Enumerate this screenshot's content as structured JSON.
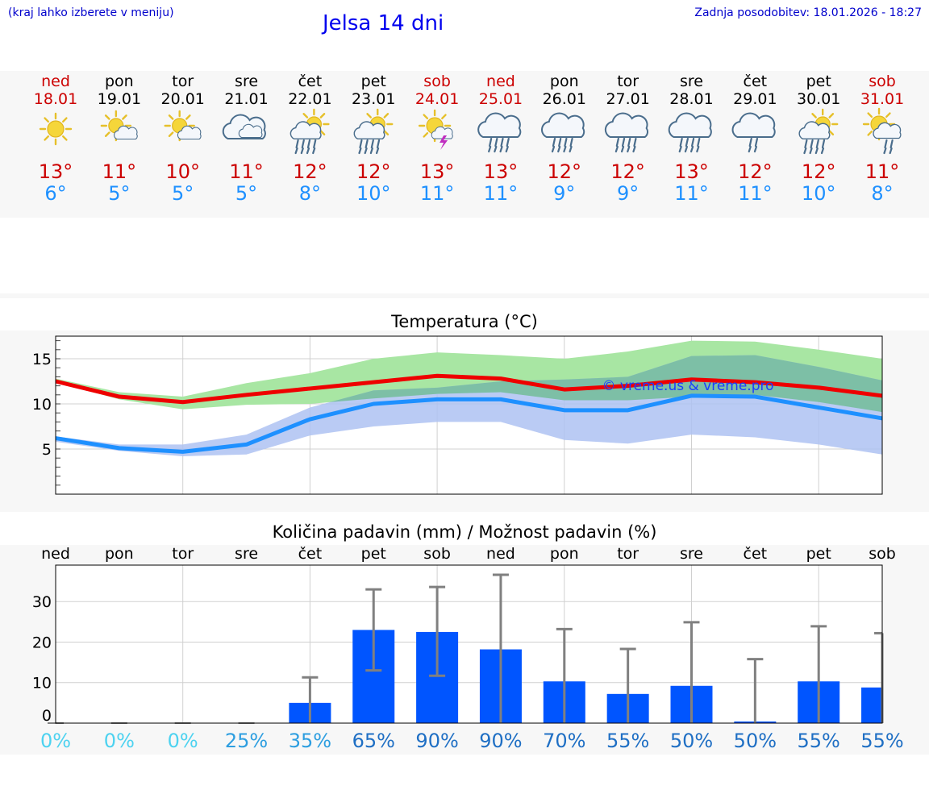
{
  "header": {
    "note": "(kraj lahko izberete v meniju)",
    "title": "Jelsa 14 dni",
    "updated": "Zadnja posodobitev: 18.01.2026 - 18:27"
  },
  "colors": {
    "weekend": "#cc0000",
    "weekday": "#000000",
    "tmax": "#ee0000",
    "tmin": "#1e90ff",
    "max_band": "#a8e6a3",
    "min_band": "#aec2f2",
    "overlap": "#7dbfa6",
    "bar": "#0055ff",
    "err": "#808080"
  },
  "days": [
    {
      "name": "ned",
      "date": "18.01",
      "weekend": true,
      "icon": "sunny-icon",
      "tmax": "13°",
      "tmin": "6°"
    },
    {
      "name": "pon",
      "date": "19.01",
      "weekend": false,
      "icon": "sun-cloud-icon",
      "tmax": "11°",
      "tmin": "5°"
    },
    {
      "name": "tor",
      "date": "20.01",
      "weekend": false,
      "icon": "sun-cloud-icon",
      "tmax": "10°",
      "tmin": "5°"
    },
    {
      "name": "sre",
      "date": "21.01",
      "weekend": false,
      "icon": "cloudy-icon",
      "tmax": "11°",
      "tmin": "5°"
    },
    {
      "name": "čet",
      "date": "22.01",
      "weekend": false,
      "icon": "sun-rain-icon",
      "tmax": "12°",
      "tmin": "8°"
    },
    {
      "name": "pet",
      "date": "23.01",
      "weekend": false,
      "icon": "sun-rain-icon",
      "tmax": "12°",
      "tmin": "10°"
    },
    {
      "name": "sob",
      "date": "24.01",
      "weekend": true,
      "icon": "sun-storm-icon",
      "tmax": "13°",
      "tmin": "11°"
    },
    {
      "name": "ned",
      "date": "25.01",
      "weekend": true,
      "icon": "rain-icon",
      "tmax": "13°",
      "tmin": "11°"
    },
    {
      "name": "pon",
      "date": "26.01",
      "weekend": false,
      "icon": "rain-icon",
      "tmax": "12°",
      "tmin": "9°"
    },
    {
      "name": "tor",
      "date": "27.01",
      "weekend": false,
      "icon": "rain-icon",
      "tmax": "12°",
      "tmin": "9°"
    },
    {
      "name": "sre",
      "date": "28.01",
      "weekend": false,
      "icon": "rain-icon",
      "tmax": "13°",
      "tmin": "11°"
    },
    {
      "name": "čet",
      "date": "29.01",
      "weekend": false,
      "icon": "light-rain-icon",
      "tmax": "12°",
      "tmin": "11°"
    },
    {
      "name": "pet",
      "date": "30.01",
      "weekend": false,
      "icon": "sun-rain-icon",
      "tmax": "12°",
      "tmin": "10°"
    },
    {
      "name": "sob",
      "date": "31.01",
      "weekend": true,
      "icon": "sun-shower-icon",
      "tmax": "11°",
      "tmin": "8°"
    }
  ],
  "chart_data": [
    {
      "type": "line",
      "title": "Temperatura (°C)",
      "watermark": "© vreme.us & vreme.pro",
      "ylim": [
        0,
        17.5
      ],
      "yticks": [
        "5",
        "10",
        "15"
      ],
      "x": [
        0,
        1,
        2,
        3,
        4,
        5,
        6,
        7,
        8,
        9,
        10,
        11,
        12,
        13
      ],
      "series": [
        {
          "name": "tmax",
          "values": [
            12.5,
            10.8,
            10.2,
            11.0,
            11.7,
            12.4,
            13.1,
            12.8,
            11.6,
            12.0,
            12.7,
            12.4,
            11.8,
            10.9
          ],
          "band_low": [
            12.4,
            10.5,
            9.4,
            9.9,
            10.0,
            10.6,
            11.1,
            11.3,
            10.4,
            10.4,
            10.8,
            11.0,
            10.2,
            9.1
          ],
          "band_high": [
            12.8,
            11.3,
            10.8,
            12.3,
            13.4,
            15.0,
            15.7,
            15.4,
            15.0,
            15.8,
            17.0,
            16.9,
            16.0,
            15.0
          ]
        },
        {
          "name": "tmin",
          "values": [
            6.2,
            5.1,
            4.7,
            5.5,
            8.3,
            10.0,
            10.5,
            10.5,
            9.3,
            9.3,
            10.9,
            10.8,
            9.6,
            8.4
          ],
          "band_low": [
            5.8,
            4.8,
            4.2,
            4.4,
            6.5,
            7.5,
            8.0,
            8.0,
            6.0,
            5.6,
            6.6,
            6.3,
            5.5,
            4.4
          ],
          "band_high": [
            6.4,
            5.5,
            5.5,
            6.6,
            9.6,
            11.5,
            11.8,
            12.5,
            12.7,
            13.0,
            15.3,
            15.4,
            14.1,
            12.6
          ]
        }
      ]
    },
    {
      "type": "bar",
      "title": "Količina padavin (mm) / Možnost padavin (%)",
      "ylim": [
        0,
        39
      ],
      "yticks": [
        "0",
        "10",
        "20",
        "30"
      ],
      "categories": [
        "ned",
        "pon",
        "tor",
        "sre",
        "čet",
        "pet",
        "sob",
        "ned",
        "pon",
        "tor",
        "sre",
        "čet",
        "pet",
        "sob"
      ],
      "values": [
        0,
        0,
        0,
        0,
        5.0,
        23.0,
        22.5,
        18.2,
        10.3,
        7.2,
        9.2,
        0.4,
        10.3,
        8.8
      ],
      "err_low": [
        0,
        0,
        0,
        0,
        0,
        13.0,
        11.7,
        0,
        0,
        0,
        0,
        0,
        0,
        0
      ],
      "err_high": [
        0,
        0,
        0,
        0,
        11.3,
        33.0,
        33.6,
        36.6,
        23.2,
        18.3,
        24.9,
        15.8,
        23.9,
        22.2
      ],
      "probability": [
        "0%",
        "0%",
        "0%",
        "25%",
        "35%",
        "65%",
        "90%",
        "90%",
        "70%",
        "55%",
        "50%",
        "50%",
        "55%",
        "55%"
      ],
      "prob_colors": [
        "#4dd2f0",
        "#4dd2f0",
        "#4dd2f0",
        "#2d9ee0",
        "#2d9ee0",
        "#1f6fc4",
        "#1f6fc4",
        "#1f6fc4",
        "#1f6fc4",
        "#1f6fc4",
        "#1f6fc4",
        "#1f6fc4",
        "#1f6fc4",
        "#1f6fc4"
      ]
    }
  ]
}
